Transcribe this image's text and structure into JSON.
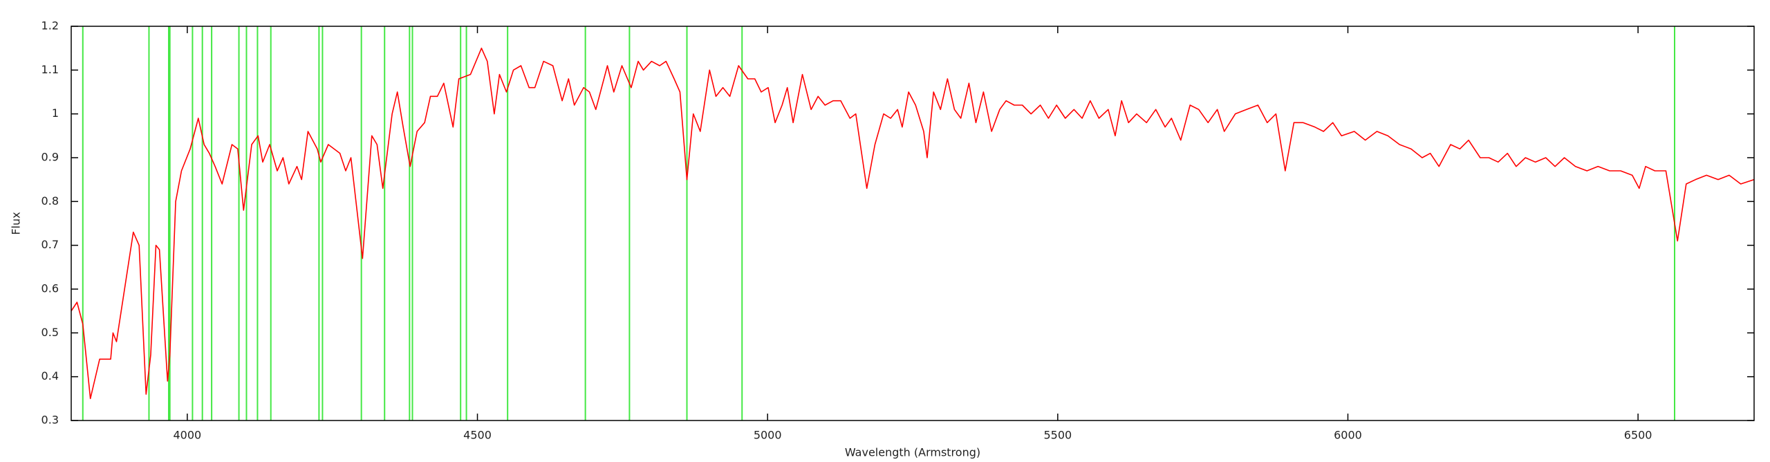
{
  "chart_data": {
    "type": "line",
    "x_label": "Wavelength (Armstrong)",
    "y_label": "Flux",
    "xlim": [
      3800,
      6700
    ],
    "ylim": [
      0.3,
      1.2
    ],
    "xticks": [
      4000,
      4500,
      5000,
      5500,
      6000,
      6500
    ],
    "yticks": [
      0.3,
      0.4,
      0.5,
      0.6,
      0.7,
      0.8,
      0.9,
      1,
      1.1,
      1.2
    ],
    "vlines": {
      "color": "#44e844",
      "x": [
        3820,
        3934,
        3968,
        3970,
        4009,
        4026,
        4042,
        4089,
        4102,
        4121,
        4144,
        4227,
        4233,
        4300,
        4340,
        4383,
        4388,
        4471,
        4481,
        4552,
        4686,
        4762,
        4861,
        4956,
        6563
      ]
    },
    "x": [
      3800,
      3810,
      3820,
      3833,
      3849,
      3868,
      3872,
      3878,
      3907,
      3917,
      3929,
      3937,
      3946,
      3952,
      3966,
      3970,
      3980,
      3990,
      4005,
      4019,
      4029,
      4038,
      4048,
      4060,
      4077,
      4087,
      4097,
      4111,
      4122,
      4130,
      4142,
      4155,
      4165,
      4175,
      4189,
      4197,
      4208,
      4224,
      4230,
      4243,
      4263,
      4273,
      4282,
      4302,
      4318,
      4327,
      4337,
      4353,
      4362,
      4372,
      4384,
      4396,
      4409,
      4419,
      4431,
      4442,
      4458,
      4468,
      4488,
      4507,
      4517,
      4529,
      4538,
      4550,
      4562,
      4575,
      4589,
      4599,
      4614,
      4630,
      4646,
      4657,
      4667,
      4683,
      4693,
      4704,
      4724,
      4735,
      4749,
      4765,
      4777,
      4786,
      4800,
      4814,
      4825,
      4839,
      4849,
      4861,
      4872,
      4884,
      4900,
      4911,
      4923,
      4935,
      4950,
      4966,
      4978,
      4989,
      5001,
      5013,
      5025,
      5034,
      5044,
      5060,
      5075,
      5087,
      5099,
      5113,
      5126,
      5142,
      5152,
      5171,
      5185,
      5200,
      5212,
      5224,
      5232,
      5243,
      5255,
      5269,
      5275,
      5286,
      5298,
      5310,
      5322,
      5333,
      5347,
      5359,
      5372,
      5386,
      5400,
      5411,
      5425,
      5439,
      5454,
      5470,
      5484,
      5498,
      5513,
      5528,
      5542,
      5556,
      5571,
      5587,
      5599,
      5610,
      5622,
      5636,
      5653,
      5669,
      5685,
      5696,
      5712,
      5728,
      5743,
      5759,
      5775,
      5787,
      5806,
      5825,
      5845,
      5861,
      5876,
      5892,
      5907,
      5923,
      5943,
      5958,
      5974,
      5989,
      6011,
      6030,
      6050,
      6069,
      6089,
      6109,
      6128,
      6142,
      6157,
      6177,
      6193,
      6208,
      6228,
      6243,
      6259,
      6275,
      6290,
      6306,
      6323,
      6341,
      6357,
      6373,
      6392,
      6412,
      6431,
      6451,
      6470,
      6490,
      6502,
      6513,
      6529,
      6548,
      6568,
      6583,
      6599,
      6618,
      6638,
      6657,
      6677,
      6700
    ],
    "series": [
      {
        "color": "#ff0000",
        "values": [
          0.55,
          0.57,
          0.52,
          0.35,
          0.44,
          0.44,
          0.5,
          0.48,
          0.73,
          0.7,
          0.36,
          0.45,
          0.7,
          0.69,
          0.39,
          0.45,
          0.8,
          0.87,
          0.92,
          0.99,
          0.93,
          0.91,
          0.88,
          0.84,
          0.93,
          0.92,
          0.78,
          0.93,
          0.95,
          0.89,
          0.93,
          0.87,
          0.9,
          0.84,
          0.88,
          0.85,
          0.96,
          0.92,
          0.89,
          0.93,
          0.91,
          0.87,
          0.9,
          0.67,
          0.95,
          0.93,
          0.83,
          1.0,
          1.05,
          0.97,
          0.88,
          0.96,
          0.98,
          1.04,
          1.04,
          1.07,
          0.97,
          1.08,
          1.09,
          1.15,
          1.12,
          1.0,
          1.09,
          1.05,
          1.1,
          1.11,
          1.06,
          1.06,
          1.12,
          1.11,
          1.03,
          1.08,
          1.02,
          1.06,
          1.05,
          1.01,
          1.11,
          1.05,
          1.11,
          1.06,
          1.12,
          1.1,
          1.12,
          1.11,
          1.12,
          1.08,
          1.05,
          0.85,
          1.0,
          0.96,
          1.1,
          1.04,
          1.06,
          1.04,
          1.11,
          1.08,
          1.08,
          1.05,
          1.06,
          0.98,
          1.02,
          1.06,
          0.98,
          1.09,
          1.01,
          1.04,
          1.02,
          1.03,
          1.03,
          0.99,
          1.0,
          0.83,
          0.93,
          1.0,
          0.99,
          1.01,
          0.97,
          1.05,
          1.02,
          0.96,
          0.9,
          1.05,
          1.01,
          1.08,
          1.01,
          0.99,
          1.07,
          0.98,
          1.05,
          0.96,
          1.01,
          1.03,
          1.02,
          1.02,
          1.0,
          1.02,
          0.99,
          1.02,
          0.99,
          1.01,
          0.99,
          1.03,
          0.99,
          1.01,
          0.95,
          1.03,
          0.98,
          1.0,
          0.98,
          1.01,
          0.97,
          0.99,
          0.94,
          1.02,
          1.01,
          0.98,
          1.01,
          0.96,
          1.0,
          1.01,
          1.02,
          0.98,
          1.0,
          0.87,
          0.98,
          0.98,
          0.97,
          0.96,
          0.98,
          0.95,
          0.96,
          0.94,
          0.96,
          0.95,
          0.93,
          0.92,
          0.9,
          0.91,
          0.88,
          0.93,
          0.92,
          0.94,
          0.9,
          0.9,
          0.89,
          0.91,
          0.88,
          0.9,
          0.89,
          0.9,
          0.88,
          0.9,
          0.88,
          0.87,
          0.88,
          0.87,
          0.87,
          0.86,
          0.83,
          0.88,
          0.87,
          0.87,
          0.71,
          0.84,
          0.85,
          0.86,
          0.85,
          0.86,
          0.84,
          0.85
        ]
      }
    ]
  }
}
